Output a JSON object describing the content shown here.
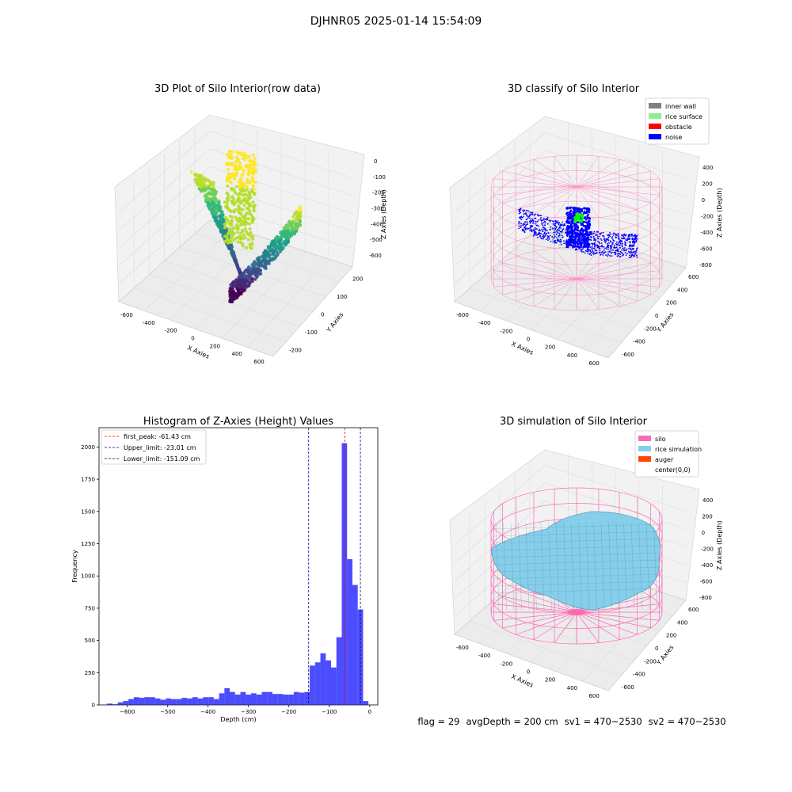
{
  "suptitle": "DJHNR05 2025-01-14 15:54:09",
  "colors": {
    "pane": "#f2f2f2",
    "grid": "#e0e0e0",
    "hist": "#0000ff",
    "peak": "#ff0000",
    "limit": "#00008b",
    "silo": "#ff69b4",
    "rice": "#87ceeb",
    "auger": "#ff4500",
    "wall": "#808080",
    "surface": "#90ee90",
    "obstacle": "#ff0000",
    "noise": "#0000ff"
  },
  "panels": {
    "raw": {
      "title": "3D Plot of Silo Interior(row data)",
      "xlabel": "X Axies",
      "ylabel": "Y Axies",
      "zlabel": "Z Axies (Depth)",
      "xticks": [
        "-600",
        "-400",
        "-200",
        "0",
        "200",
        "400",
        "600"
      ],
      "yticks": [
        "-200",
        "-100",
        "0",
        "100",
        "200"
      ],
      "zticks": [
        "0",
        "-100",
        "-200",
        "-300",
        "-400",
        "-500",
        "-600"
      ]
    },
    "classify": {
      "title": "3D classify of Silo Interior",
      "xlabel": "X Axies",
      "ylabel": "Y Axies",
      "zlabel": "Z Axies (Depth)",
      "xticks": [
        "-600",
        "-400",
        "-200",
        "0",
        "200",
        "400",
        "600"
      ],
      "yticks": [
        "-600",
        "-400",
        "-200",
        "0",
        "200",
        "400",
        "600"
      ],
      "zticks": [
        "400",
        "200",
        "0",
        "-200",
        "-400",
        "-600",
        "-800"
      ],
      "legend": [
        {
          "label": "inner wall",
          "color": "#808080"
        },
        {
          "label": "rice surface",
          "color": "#90ee90"
        },
        {
          "label": "obstacle",
          "color": "#ff0000"
        },
        {
          "label": "noise",
          "color": "#0000ff"
        }
      ]
    },
    "simulation": {
      "title": "3D simulation of Silo Interior",
      "xlabel": "X Axies",
      "ylabel": "Y Axies",
      "zlabel": "Z Axies (Depth)",
      "xticks": [
        "-600",
        "-400",
        "-200",
        "0",
        "200",
        "400",
        "600"
      ],
      "yticks": [
        "-600",
        "-400",
        "-200",
        "0",
        "200",
        "400",
        "600"
      ],
      "zticks": [
        "400",
        "200",
        "0",
        "-200",
        "-400",
        "-600",
        "-800"
      ],
      "legend": [
        {
          "label": "silo",
          "color": "#ff69b4"
        },
        {
          "label": "rice simulation",
          "color": "#87ceeb"
        },
        {
          "label": "auger",
          "color": "#ff4500"
        },
        {
          "label": "center(0,0)",
          "color": ""
        }
      ]
    }
  },
  "footer": {
    "flag": "flag = 29",
    "avg": "avgDepth = 200 cm",
    "sv1": "sv1 = 470~2530",
    "sv2": "sv2 = 470~2530"
  },
  "chart_data": [
    {
      "type": "bar",
      "title": "Histogram of Z-Axies (Height) Values",
      "xlabel": "Depth (cm)",
      "ylabel": "Frequency",
      "xlim": [
        -670,
        20
      ],
      "ylim": [
        0,
        2150
      ],
      "xticks": [
        -600,
        -500,
        -400,
        -300,
        -200,
        -100,
        0
      ],
      "yticks": [
        0,
        250,
        500,
        750,
        1000,
        1250,
        1500,
        1750,
        2000
      ],
      "bin_width": 13.2,
      "bin_starts": [
        -650.0,
        -636.8,
        -623.6,
        -610.4,
        -597.2,
        -584.0,
        -570.8,
        -557.6,
        -544.4,
        -531.2,
        -518.0,
        -504.8,
        -491.6,
        -478.4,
        -465.2,
        -452.0,
        -438.8,
        -425.6,
        -412.4,
        -399.2,
        -386.0,
        -372.8,
        -359.6,
        -346.4,
        -333.2,
        -320.0,
        -306.8,
        -293.6,
        -280.4,
        -267.2,
        -254.0,
        -240.8,
        -227.6,
        -214.4,
        -201.2,
        -188.0,
        -174.8,
        -161.6,
        -148.4,
        -135.2,
        -122.0,
        -108.8,
        -95.6,
        -82.4,
        -69.2,
        -56.0,
        -42.8,
        -29.6,
        -16.4
      ],
      "values": [
        10,
        5,
        20,
        30,
        45,
        60,
        55,
        60,
        60,
        50,
        40,
        50,
        45,
        45,
        55,
        50,
        60,
        50,
        60,
        60,
        45,
        90,
        130,
        100,
        80,
        100,
        80,
        90,
        80,
        100,
        100,
        85,
        85,
        80,
        80,
        100,
        95,
        100,
        305,
        330,
        400,
        345,
        290,
        525,
        2030,
        1130,
        930,
        740,
        30
      ],
      "lines": [
        {
          "label": "first_peak: -61.43 cm",
          "x": -61.43,
          "color": "#ff0000"
        },
        {
          "label": "Upper_limit: -23.01 cm",
          "x": -23.01,
          "color": "#00008b"
        },
        {
          "label": "Lower_limit: -151.09 cm",
          "x": -151.09,
          "color": "#00008b"
        }
      ],
      "legend_placement": "upper-left"
    }
  ]
}
